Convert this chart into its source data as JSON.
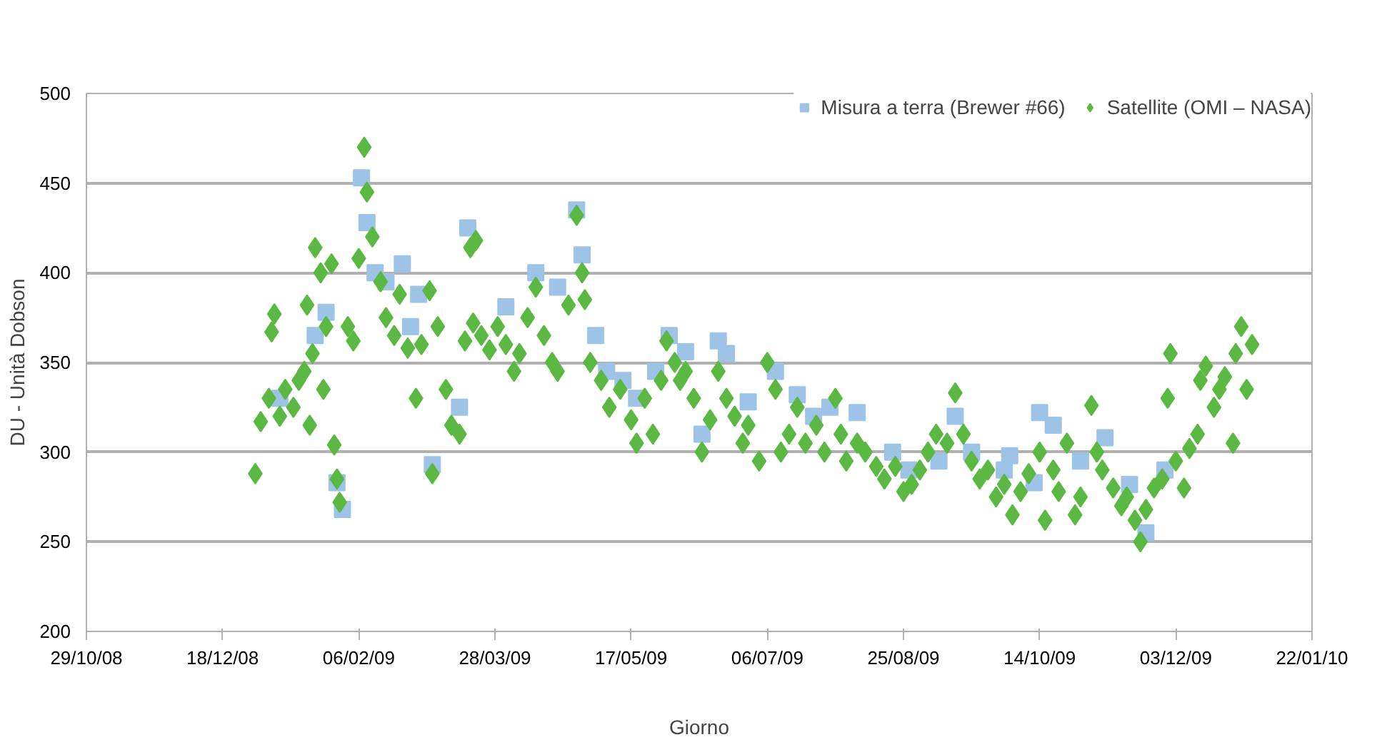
{
  "chart_data": {
    "type": "scatter",
    "xlabel": "Giorno",
    "ylabel": "DU - Unità Dobson",
    "legend": "top right",
    "grid": "y",
    "xlim": [
      "2008-10-29",
      "2010-01-22"
    ],
    "ylim": [
      200,
      500
    ],
    "yticks": [
      200,
      250,
      300,
      350,
      400,
      450,
      500
    ],
    "xticks": [
      {
        "value": "2008-10-29",
        "label": "29/10/08"
      },
      {
        "value": "2008-12-18",
        "label": "18/12/08"
      },
      {
        "value": "2009-02-06",
        "label": "06/02/09"
      },
      {
        "value": "2009-03-28",
        "label": "28/03/09"
      },
      {
        "value": "2009-05-17",
        "label": "17/05/09"
      },
      {
        "value": "2009-07-06",
        "label": "06/07/09"
      },
      {
        "value": "2009-08-25",
        "label": "25/08/09"
      },
      {
        "value": "2009-10-14",
        "label": "14/10/09"
      },
      {
        "value": "2009-12-03",
        "label": "03/12/09"
      },
      {
        "value": "2010-01-22",
        "label": "22/01/10"
      }
    ],
    "series": [
      {
        "name": "Misura a terra (Brewer #66)",
        "color": "#9dc3e6",
        "marker": "square",
        "x": [
          "2009-01-08",
          "2009-01-21",
          "2009-01-25",
          "2009-01-29",
          "2009-01-31",
          "2009-02-07",
          "2009-02-09",
          "2009-02-12",
          "2009-02-16",
          "2009-02-22",
          "2009-02-25",
          "2009-02-28",
          "2009-03-05",
          "2009-03-15",
          "2009-03-18",
          "2009-04-01",
          "2009-04-12",
          "2009-04-20",
          "2009-04-27",
          "2009-04-29",
          "2009-05-04",
          "2009-05-08",
          "2009-05-14",
          "2009-05-19",
          "2009-05-26",
          "2009-05-31",
          "2009-06-06",
          "2009-06-12",
          "2009-06-18",
          "2009-06-21",
          "2009-06-29",
          "2009-07-09",
          "2009-07-17",
          "2009-07-23",
          "2009-07-29",
          "2009-08-08",
          "2009-08-21",
          "2009-08-27",
          "2009-09-07",
          "2009-09-13",
          "2009-09-19",
          "2009-10-01",
          "2009-10-03",
          "2009-10-12",
          "2009-10-14",
          "2009-10-19",
          "2009-10-29",
          "2009-11-07",
          "2009-11-16",
          "2009-11-22",
          "2009-11-29"
        ],
        "values": [
          330,
          365,
          378,
          283,
          268,
          453,
          428,
          400,
          395,
          405,
          370,
          388,
          293,
          325,
          425,
          381,
          400,
          392,
          435,
          410,
          365,
          345,
          340,
          330,
          345,
          365,
          356,
          310,
          362,
          355,
          328,
          345,
          332,
          320,
          325,
          322,
          300,
          290,
          295,
          320,
          300,
          290,
          298,
          283,
          322,
          315,
          295,
          308,
          282,
          255,
          290
        ]
      },
      {
        "name": "Satellite (OMI – NASA)",
        "color": "#5bb843",
        "marker": "diamond",
        "x": [
          "2008-12-30",
          "2009-01-01",
          "2009-01-04",
          "2009-01-05",
          "2009-01-06",
          "2009-01-08",
          "2009-01-10",
          "2009-01-13",
          "2009-01-15",
          "2009-01-17",
          "2009-01-18",
          "2009-01-19",
          "2009-01-20",
          "2009-01-21",
          "2009-01-23",
          "2009-01-24",
          "2009-01-25",
          "2009-01-27",
          "2009-01-28",
          "2009-01-29",
          "2009-01-30",
          "2009-02-02",
          "2009-02-04",
          "2009-02-06",
          "2009-02-08",
          "2009-02-09",
          "2009-02-11",
          "2009-02-14",
          "2009-02-16",
          "2009-02-19",
          "2009-02-21",
          "2009-02-24",
          "2009-02-27",
          "2009-03-01",
          "2009-03-04",
          "2009-03-05",
          "2009-03-07",
          "2009-03-10",
          "2009-03-12",
          "2009-03-15",
          "2009-03-17",
          "2009-03-19",
          "2009-03-20",
          "2009-03-21",
          "2009-03-23",
          "2009-03-26",
          "2009-03-29",
          "2009-04-01",
          "2009-04-04",
          "2009-04-06",
          "2009-04-09",
          "2009-04-12",
          "2009-04-15",
          "2009-04-18",
          "2009-04-20",
          "2009-04-24",
          "2009-04-27",
          "2009-04-29",
          "2009-04-30",
          "2009-05-02",
          "2009-05-06",
          "2009-05-09",
          "2009-05-13",
          "2009-05-17",
          "2009-05-19",
          "2009-05-22",
          "2009-05-25",
          "2009-05-28",
          "2009-05-30",
          "2009-06-02",
          "2009-06-04",
          "2009-06-06",
          "2009-06-09",
          "2009-06-12",
          "2009-06-15",
          "2009-06-18",
          "2009-06-21",
          "2009-06-24",
          "2009-06-27",
          "2009-06-29",
          "2009-07-03",
          "2009-07-06",
          "2009-07-09",
          "2009-07-11",
          "2009-07-14",
          "2009-07-17",
          "2009-07-20",
          "2009-07-24",
          "2009-07-27",
          "2009-07-31",
          "2009-08-02",
          "2009-08-04",
          "2009-08-08",
          "2009-08-11",
          "2009-08-15",
          "2009-08-18",
          "2009-08-22",
          "2009-08-25",
          "2009-08-28",
          "2009-08-31",
          "2009-09-03",
          "2009-09-06",
          "2009-09-10",
          "2009-09-13",
          "2009-09-16",
          "2009-09-19",
          "2009-09-22",
          "2009-09-25",
          "2009-09-28",
          "2009-10-01",
          "2009-10-04",
          "2009-10-07",
          "2009-10-10",
          "2009-10-14",
          "2009-10-16",
          "2009-10-19",
          "2009-10-21",
          "2009-10-24",
          "2009-10-27",
          "2009-10-29",
          "2009-11-02",
          "2009-11-04",
          "2009-11-06",
          "2009-11-10",
          "2009-11-13",
          "2009-11-15",
          "2009-11-18",
          "2009-11-20",
          "2009-11-22",
          "2009-11-25",
          "2009-11-28",
          "2009-11-30",
          "2009-12-01",
          "2009-12-03",
          "2009-12-06",
          "2009-12-08",
          "2009-12-11",
          "2009-12-12",
          "2009-12-14",
          "2009-12-17",
          "2009-12-19",
          "2009-12-21",
          "2009-12-24",
          "2009-12-25",
          "2009-12-27",
          "2009-12-29",
          "2009-12-31"
        ],
        "values": [
          288,
          317,
          330,
          367,
          377,
          320,
          335,
          325,
          340,
          345,
          382,
          315,
          355,
          414,
          400,
          335,
          370,
          405,
          304,
          285,
          272,
          370,
          362,
          408,
          470,
          445,
          420,
          395,
          375,
          365,
          388,
          358,
          330,
          360,
          390,
          288,
          370,
          335,
          315,
          310,
          362,
          414,
          372,
          418,
          365,
          357,
          370,
          360,
          345,
          355,
          375,
          392,
          365,
          350,
          345,
          382,
          432,
          400,
          385,
          350,
          340,
          325,
          335,
          318,
          305,
          330,
          310,
          340,
          362,
          350,
          340,
          345,
          330,
          300,
          318,
          345,
          330,
          320,
          305,
          315,
          295,
          350,
          335,
          300,
          310,
          325,
          305,
          315,
          300,
          330,
          310,
          295,
          305,
          300,
          292,
          285,
          292,
          278,
          282,
          290,
          300,
          310,
          305,
          333,
          310,
          295,
          285,
          290,
          275,
          282,
          265,
          278,
          288,
          300,
          262,
          290,
          278,
          305,
          265,
          275,
          326,
          300,
          290,
          280,
          270,
          275,
          262,
          250,
          268,
          280,
          285,
          330,
          355,
          295,
          280,
          302,
          310,
          340,
          348,
          325,
          335,
          342,
          305,
          355,
          370,
          335,
          360
        ]
      }
    ]
  }
}
